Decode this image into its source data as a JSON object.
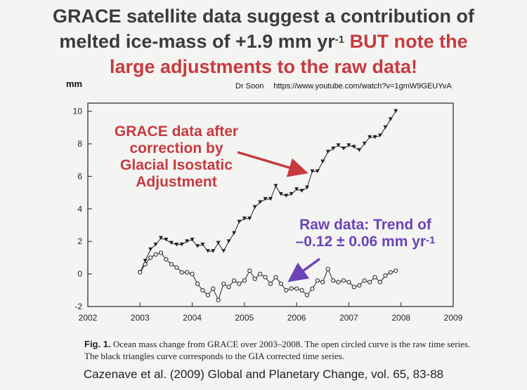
{
  "slide": {
    "title_line1": "GRACE satellite data suggest a contribution of",
    "title_line2_a": "melted ice-mass of +1.9 mm yr",
    "title_line2_sup": "-1",
    "title_line2_b": " BUT note the",
    "title_line3": "large adjustments to the raw data!",
    "credit_name": "Dr Soon",
    "credit_url": "https://www.youtube.com/watch?v=1gmW9GEUYvA",
    "citation": "Cazenave et al. (2009) Global and Planetary Change, vol. 65, 83-88"
  },
  "annotations": {
    "corrected_line1": "GRACE data after",
    "corrected_line2": "correction by",
    "corrected_line3": "Glacial Isostatic",
    "corrected_line4": "Adjustment",
    "raw_line1": "Raw data: Trend of",
    "raw_line2_a": "–0.12 ± 0.06 mm yr",
    "raw_line2_sup": "-1"
  },
  "caption": {
    "label": "Fig. 1.",
    "text": " Ocean mass change from GRACE over 2003–2008. The open circled curve is the raw time series. The black triangles curve corresponds to the GIA corrected time series."
  },
  "colors": {
    "accent_red": "#c83a3e",
    "accent_purple": "#6b44b8"
  },
  "chart_data": {
    "type": "line",
    "ylabel": "mm",
    "xlabel": "",
    "xlim": [
      2002,
      2009
    ],
    "ylim": [
      -2,
      10.5
    ],
    "xticks": [
      2002,
      2003,
      2004,
      2005,
      2006,
      2007,
      2008,
      2009
    ],
    "yticks": [
      -2,
      0,
      2,
      4,
      6,
      8,
      10
    ],
    "grid": false,
    "series": [
      {
        "marker": "triangle",
        "x": [
          2003.0,
          2003.1,
          2003.2,
          2003.3,
          2003.4,
          2003.5,
          2003.6,
          2003.7,
          2003.8,
          2003.9,
          2004.0,
          2004.1,
          2004.2,
          2004.3,
          2004.4,
          2004.5,
          2004.6,
          2004.7,
          2004.8,
          2004.9,
          2005.0,
          2005.1,
          2005.2,
          2005.3,
          2005.4,
          2005.5,
          2005.6,
          2005.7,
          2005.8,
          2005.9,
          2006.0,
          2006.1,
          2006.2,
          2006.3,
          2006.4,
          2006.5,
          2006.6,
          2006.7,
          2006.8,
          2006.9,
          2007.0,
          2007.1,
          2007.2,
          2007.3,
          2007.4,
          2007.5,
          2007.6,
          2007.7,
          2007.8,
          2007.9
        ],
        "values": [
          0.1,
          0.8,
          1.5,
          1.8,
          2.2,
          2.1,
          1.9,
          1.8,
          1.8,
          2.0,
          2.1,
          1.7,
          1.8,
          1.4,
          1.4,
          1.9,
          1.4,
          2.0,
          2.5,
          3.2,
          3.4,
          3.4,
          4.1,
          4.4,
          4.6,
          4.6,
          5.4,
          4.9,
          4.8,
          4.9,
          5.2,
          5.1,
          5.3,
          6.3,
          6.3,
          6.9,
          7.5,
          7.7,
          7.9,
          7.7,
          7.9,
          7.8,
          7.6,
          8.0,
          8.4,
          8.4,
          8.5,
          9.0,
          9.5,
          10.0
        ]
      },
      {
        "marker": "open-circle",
        "x": [
          2003.0,
          2003.1,
          2003.2,
          2003.3,
          2003.4,
          2003.5,
          2003.6,
          2003.7,
          2003.8,
          2003.9,
          2004.0,
          2004.1,
          2004.2,
          2004.3,
          2004.4,
          2004.5,
          2004.6,
          2004.7,
          2004.8,
          2004.9,
          2005.0,
          2005.1,
          2005.2,
          2005.3,
          2005.4,
          2005.5,
          2005.6,
          2005.7,
          2005.8,
          2005.9,
          2006.0,
          2006.1,
          2006.2,
          2006.3,
          2006.4,
          2006.5,
          2006.6,
          2006.7,
          2006.8,
          2006.9,
          2007.0,
          2007.1,
          2007.2,
          2007.3,
          2007.4,
          2007.5,
          2007.6,
          2007.7,
          2007.8,
          2007.9
        ],
        "values": [
          0.1,
          0.6,
          1.0,
          1.2,
          1.3,
          0.9,
          0.6,
          0.4,
          0.1,
          0.1,
          0.0,
          -0.6,
          -1.0,
          -1.3,
          -0.9,
          -1.6,
          -0.6,
          -0.8,
          -0.4,
          -0.6,
          -0.4,
          0.2,
          -0.3,
          0.0,
          -0.2,
          -0.6,
          -0.2,
          -0.6,
          -1.0,
          -0.9,
          -0.9,
          -1.0,
          -1.3,
          -0.9,
          -0.4,
          -0.5,
          0.3,
          -0.4,
          -0.5,
          -0.4,
          -0.5,
          -0.8,
          -0.7,
          -0.4,
          -0.5,
          -0.2,
          -0.5,
          -0.1,
          0.1,
          0.2
        ]
      }
    ]
  }
}
